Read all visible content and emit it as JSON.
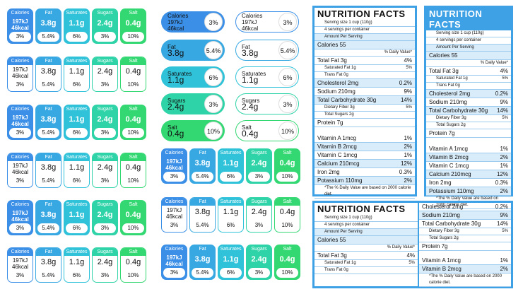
{
  "headers": [
    "Calories",
    "Fat",
    "Saturates",
    "Sugars",
    "Salt"
  ],
  "values": {
    "cal_kj": "197kJ",
    "cal_kcal": "46kcal",
    "fat": "3.8g",
    "sat": "1.1g",
    "sug": "2.4g",
    "salt": "0.4g"
  },
  "pct": [
    "3%",
    "5.4%",
    "6%",
    "3%",
    "10%"
  ],
  "colors": [
    "#3b8fe6",
    "#38a8e2",
    "#2fc2d8",
    "#2fd3a8",
    "#33d873"
  ],
  "pills": [
    {
      "label": "Calories",
      "v1": "197kJ",
      "v2": "46kcal",
      "pct": "3%"
    },
    {
      "label": "Fat",
      "v1": "3.8g",
      "pct": "5.4%"
    },
    {
      "label": "Saturates",
      "v1": "1.1g",
      "pct": "6%"
    },
    {
      "label": "Sugars",
      "v1": "2.4g",
      "pct": "3%"
    },
    {
      "label": "Salt",
      "v1": "0.4g",
      "pct": "10%"
    }
  ],
  "nf": {
    "title": "NUTRITION FACTS",
    "serving": "Serving size 1 cup (110g)",
    "servings": "4 servings per container",
    "amount": "Amount Per Serving",
    "calories": "Calories 55",
    "dv": "% Daily Value*",
    "rows": [
      [
        "Total Fat 3g",
        "4%"
      ],
      [
        "Saturated Fat 1g",
        "5%"
      ],
      [
        "Trans Fat 0g",
        ""
      ],
      [
        "Cholesterol 2mg",
        "0.2%"
      ],
      [
        "Sodium 210mg",
        "9%"
      ],
      [
        "Total Carbohydrate 30g",
        "14%"
      ],
      [
        "Dietary Fiber 3g",
        "5%"
      ],
      [
        "Total Sugars 2g",
        ""
      ],
      [
        "Protein 7g",
        ""
      ]
    ],
    "vit": [
      [
        "Vitamin A 1mcg",
        "1%"
      ],
      [
        "Vitamin B 2mcg",
        "2%"
      ],
      [
        "Vitamin C 1mcg",
        "1%"
      ],
      [
        "Calcium 210mcg",
        "12%"
      ],
      [
        "Iron 2mg",
        "0.3%"
      ],
      [
        "Potassium 110mg",
        "2%"
      ]
    ],
    "foot": "*The % Daily Value are based on 2000 calorie diet."
  }
}
